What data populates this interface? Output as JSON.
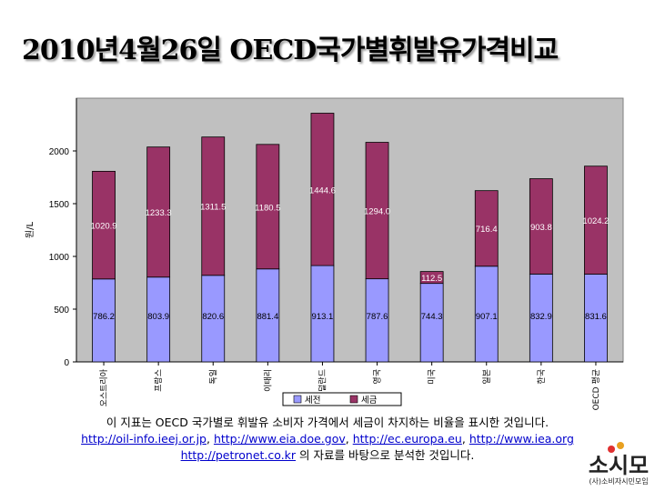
{
  "page": {
    "title": "2010년4월26일 OECD국가별휘발유가격비교"
  },
  "chart_data": {
    "type": "bar",
    "stacked": true,
    "ylabel": "원/L",
    "ylim": [
      0,
      2500
    ],
    "yticks": [
      0,
      500,
      1000,
      1500,
      2000
    ],
    "grid": false,
    "legend_position": "bottom",
    "categories": [
      "오스트리아",
      "프랑스",
      "독일",
      "이태리",
      "네덜란드",
      "영국",
      "미국",
      "일본",
      "한국",
      "OECD 평균"
    ],
    "series": [
      {
        "name": "세전",
        "color": "#9999ff",
        "values": [
          786.2,
          803.9,
          820.6,
          881.4,
          913.1,
          787.6,
          744.3,
          907.1,
          832.9,
          831.6
        ]
      },
      {
        "name": "세금",
        "color": "#993366",
        "values": [
          1020.9,
          1233.3,
          1311.5,
          1180.5,
          1444.6,
          1294.0,
          112.5,
          716.4,
          903.8,
          1024.2
        ]
      }
    ],
    "plot_background": "#c0c0c0"
  },
  "caption": {
    "line1": "이 지표는 OECD 국가별로 휘발유 소비자 가격에서 세금이 차지하는 비율을 표시한 것입니다.",
    "link1": "http://oil-info.ieej.or.jp",
    "link2": "http://www.eia.doe.gov",
    "link3": "http://ec.europa.eu",
    "link4": "http://www.iea.org",
    "link5": "http://petronet.co.kr",
    "sep": ", ",
    "line3_suffix": " 의 자료를 바탕으로 분석한 것입니다."
  },
  "logo": {
    "mark": "소시모",
    "subtitle": "(사)소비자시민모임"
  }
}
